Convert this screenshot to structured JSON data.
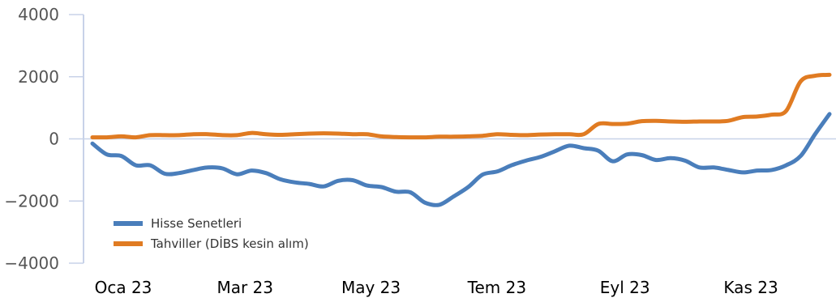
{
  "chart_data": {
    "type": "line",
    "title": "",
    "xlabel": "",
    "ylabel": "",
    "ylim": [
      -4000,
      4000
    ],
    "yticks": [
      4000,
      2000,
      0,
      -2000,
      -4000
    ],
    "ytick_labels": [
      "4000",
      "2000",
      "0",
      "−2000",
      "−4000"
    ],
    "xticks": [
      {
        "date": "2023-01-01",
        "label": "Oca 23"
      },
      {
        "date": "2023-03-01",
        "label": "Mar 23"
      },
      {
        "date": "2023-05-01",
        "label": "May 23"
      },
      {
        "date": "2023-07-01",
        "label": "Tem 23"
      },
      {
        "date": "2023-09-01",
        "label": "Eyl 23"
      },
      {
        "date": "2023-11-01",
        "label": "Kas 23"
      }
    ],
    "zero_line": true,
    "grid": false,
    "legend_position": "bottom-left",
    "x": [
      "2023-01-01",
      "2023-01-08",
      "2023-01-15",
      "2023-01-22",
      "2023-01-29",
      "2023-02-05",
      "2023-02-12",
      "2023-02-19",
      "2023-02-26",
      "2023-03-05",
      "2023-03-12",
      "2023-03-19",
      "2023-03-26",
      "2023-04-02",
      "2023-04-09",
      "2023-04-16",
      "2023-04-23",
      "2023-04-30",
      "2023-05-07",
      "2023-05-14",
      "2023-05-21",
      "2023-05-28",
      "2023-06-04",
      "2023-06-11",
      "2023-06-18",
      "2023-06-25",
      "2023-07-02",
      "2023-07-09",
      "2023-07-16",
      "2023-07-23",
      "2023-07-30",
      "2023-08-06",
      "2023-08-13",
      "2023-08-20",
      "2023-08-27",
      "2023-09-03",
      "2023-09-10",
      "2023-09-17",
      "2023-09-24",
      "2023-10-01",
      "2023-10-08",
      "2023-10-15",
      "2023-10-22",
      "2023-10-29",
      "2023-11-05",
      "2023-11-12",
      "2023-11-19",
      "2023-11-26",
      "2023-12-03",
      "2023-12-10",
      "2023-12-17",
      "2023-12-24"
    ],
    "series": [
      {
        "name": "Hisse Senetleri",
        "color": "#4a7ebb",
        "values": [
          -150,
          -500,
          -550,
          -850,
          -850,
          -1120,
          -1100,
          -1000,
          -920,
          -950,
          -1140,
          -1020,
          -1100,
          -1300,
          -1400,
          -1450,
          -1530,
          -1350,
          -1330,
          -1500,
          -1550,
          -1700,
          -1720,
          -2050,
          -2120,
          -1850,
          -1550,
          -1150,
          -1050,
          -850,
          -700,
          -580,
          -400,
          -220,
          -300,
          -380,
          -720,
          -500,
          -520,
          -680,
          -620,
          -700,
          -920,
          -920,
          -1000,
          -1080,
          -1020,
          -1000,
          -850,
          -550,
          150,
          800
        ]
      },
      {
        "name": "Tahviller (DİBS kesin alım)",
        "color": "#e07b22",
        "values": [
          50,
          50,
          80,
          50,
          120,
          120,
          120,
          150,
          150,
          120,
          120,
          190,
          150,
          130,
          150,
          170,
          180,
          170,
          150,
          150,
          80,
          60,
          50,
          50,
          70,
          70,
          80,
          100,
          150,
          130,
          120,
          140,
          150,
          150,
          150,
          480,
          480,
          490,
          570,
          580,
          560,
          550,
          560,
          560,
          580,
          700,
          720,
          780,
          900,
          1850,
          2030,
          2060
        ]
      }
    ]
  }
}
